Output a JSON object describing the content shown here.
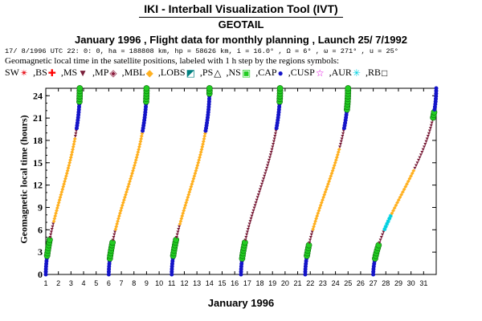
{
  "header": {
    "title": "IKI - Interball Visualization Tool (IVT)",
    "subtitle": "GEOTAIL",
    "heading": "January 1996 ,  Flight data for monthly planning ,  Launch 25/ 7/1992",
    "params": "17/ 8/1996 UTC 22: 0: 0, ha = 188808 km, hp = 58626 km, i = 16.0° , Ω = 6° , ω = 271° , u = 25°",
    "geo_line": "Geomagnetic local time in the satellite positions, labeled with 1 h step by the regions symbols:"
  },
  "legend": [
    {
      "label": "SW",
      "symbol": "✴",
      "color": "#e8141e",
      "sep": ""
    },
    {
      "label": "BS",
      "symbol": "✚",
      "color": "#ff0000",
      "sep": ","
    },
    {
      "label": "MS",
      "symbol": "▼",
      "color": "#7a1f3a",
      "sep": ","
    },
    {
      "label": "MP",
      "symbol": "◈",
      "color": "#8b1c3c",
      "sep": ","
    },
    {
      "label": "MBL",
      "symbol": "◆",
      "color": "#ffb020",
      "sep": ","
    },
    {
      "label": "LOBS",
      "symbol": "◩",
      "color": "#008080",
      "sep": ","
    },
    {
      "label": "PS",
      "symbol": "△",
      "color": "#000000",
      "sep": ","
    },
    {
      "label": "NS",
      "symbol": "▣",
      "color": "#22cc22",
      "sep": ","
    },
    {
      "label": "CAP",
      "symbol": "●",
      "color": "#1414c8",
      "sep": ","
    },
    {
      "label": "CUSP",
      "symbol": "☆",
      "color": "#e000e0",
      "sep": ","
    },
    {
      "label": "AUR",
      "symbol": "✳",
      "color": "#00d0e0",
      "sep": ","
    },
    {
      "label": "RB",
      "symbol": "□",
      "color": "#000000",
      "sep": ","
    }
  ],
  "chart_data": {
    "type": "scatter",
    "title": "IKI - Interball Visualization Tool (IVT)",
    "xlabel": "January 1996",
    "ylabel": "Geomagnetic local time (hours)",
    "xlim": [
      1,
      32
    ],
    "ylim": [
      0,
      25
    ],
    "x_ticks": [
      "1",
      "2",
      "3",
      "4",
      "5",
      "6",
      "7",
      "8",
      "9",
      "10",
      "11",
      "12",
      "13",
      "14",
      "15",
      "16",
      "17",
      "18",
      "19",
      "20",
      "21",
      "22",
      "23",
      "24",
      "25",
      "26",
      "27",
      "28",
      "29",
      "30",
      "31"
    ],
    "y_ticks": [
      "0",
      "3",
      "6",
      "9",
      "12",
      "15",
      "18",
      "21",
      "24"
    ],
    "region_colors": {
      "CAP": "#1414c8",
      "NS": "#22cc22",
      "MS": "#7a1f3a",
      "MBL": "#ffb020",
      "AUR": "#00d0e0"
    },
    "orbits": [
      {
        "start_day": 1.0,
        "end_day": 3.7,
        "segments": [
          [
            "CAP",
            0,
            2.5
          ],
          [
            "NS",
            2.5,
            5
          ],
          [
            "MS",
            5,
            7
          ],
          [
            "MBL",
            7,
            18.5
          ],
          [
            "MS",
            18.5,
            19.5
          ],
          [
            "CAP",
            19.5,
            23
          ],
          [
            "NS",
            23,
            25
          ]
        ]
      },
      {
        "start_day": 6.0,
        "end_day": 9.0,
        "segments": [
          [
            "CAP",
            0,
            2
          ],
          [
            "NS",
            2,
            4.5
          ],
          [
            "MS",
            4.5,
            6
          ],
          [
            "MBL",
            6,
            19
          ],
          [
            "CAP",
            19,
            23
          ],
          [
            "NS",
            23,
            25
          ]
        ]
      },
      {
        "start_day": 11.0,
        "end_day": 14.0,
        "segments": [
          [
            "CAP",
            0,
            2.5
          ],
          [
            "NS",
            2.5,
            5
          ],
          [
            "MS",
            5,
            6.5
          ],
          [
            "MBL",
            6.5,
            19
          ],
          [
            "CAP",
            19,
            24
          ],
          [
            "NS",
            24,
            25
          ]
        ]
      },
      {
        "start_day": 16.5,
        "end_day": 19.6,
        "segments": [
          [
            "CAP",
            0,
            2
          ],
          [
            "NS",
            2,
            4.5
          ],
          [
            "MS",
            4.5,
            19.5
          ],
          [
            "CAP",
            19.5,
            23
          ],
          [
            "NS",
            23,
            25
          ]
        ]
      },
      {
        "start_day": 21.6,
        "end_day": 25.0,
        "segments": [
          [
            "CAP",
            0,
            2.5
          ],
          [
            "NS",
            2.5,
            4
          ],
          [
            "MS",
            4,
            6
          ],
          [
            "MBL",
            6,
            17
          ],
          [
            "MS",
            17,
            19.5
          ],
          [
            "CAP",
            19.5,
            22
          ],
          [
            "NS",
            22,
            25
          ]
        ]
      },
      {
        "start_day": 27.0,
        "end_day": 32.0,
        "segments": [
          [
            "CAP",
            0,
            2
          ],
          [
            "NS",
            2,
            4
          ],
          [
            "MS",
            4,
            6
          ],
          [
            "AUR",
            6,
            8
          ],
          [
            "MBL",
            8,
            14
          ],
          [
            "MS",
            14,
            21
          ],
          [
            "NS",
            21,
            22
          ]
        ]
      }
    ]
  }
}
